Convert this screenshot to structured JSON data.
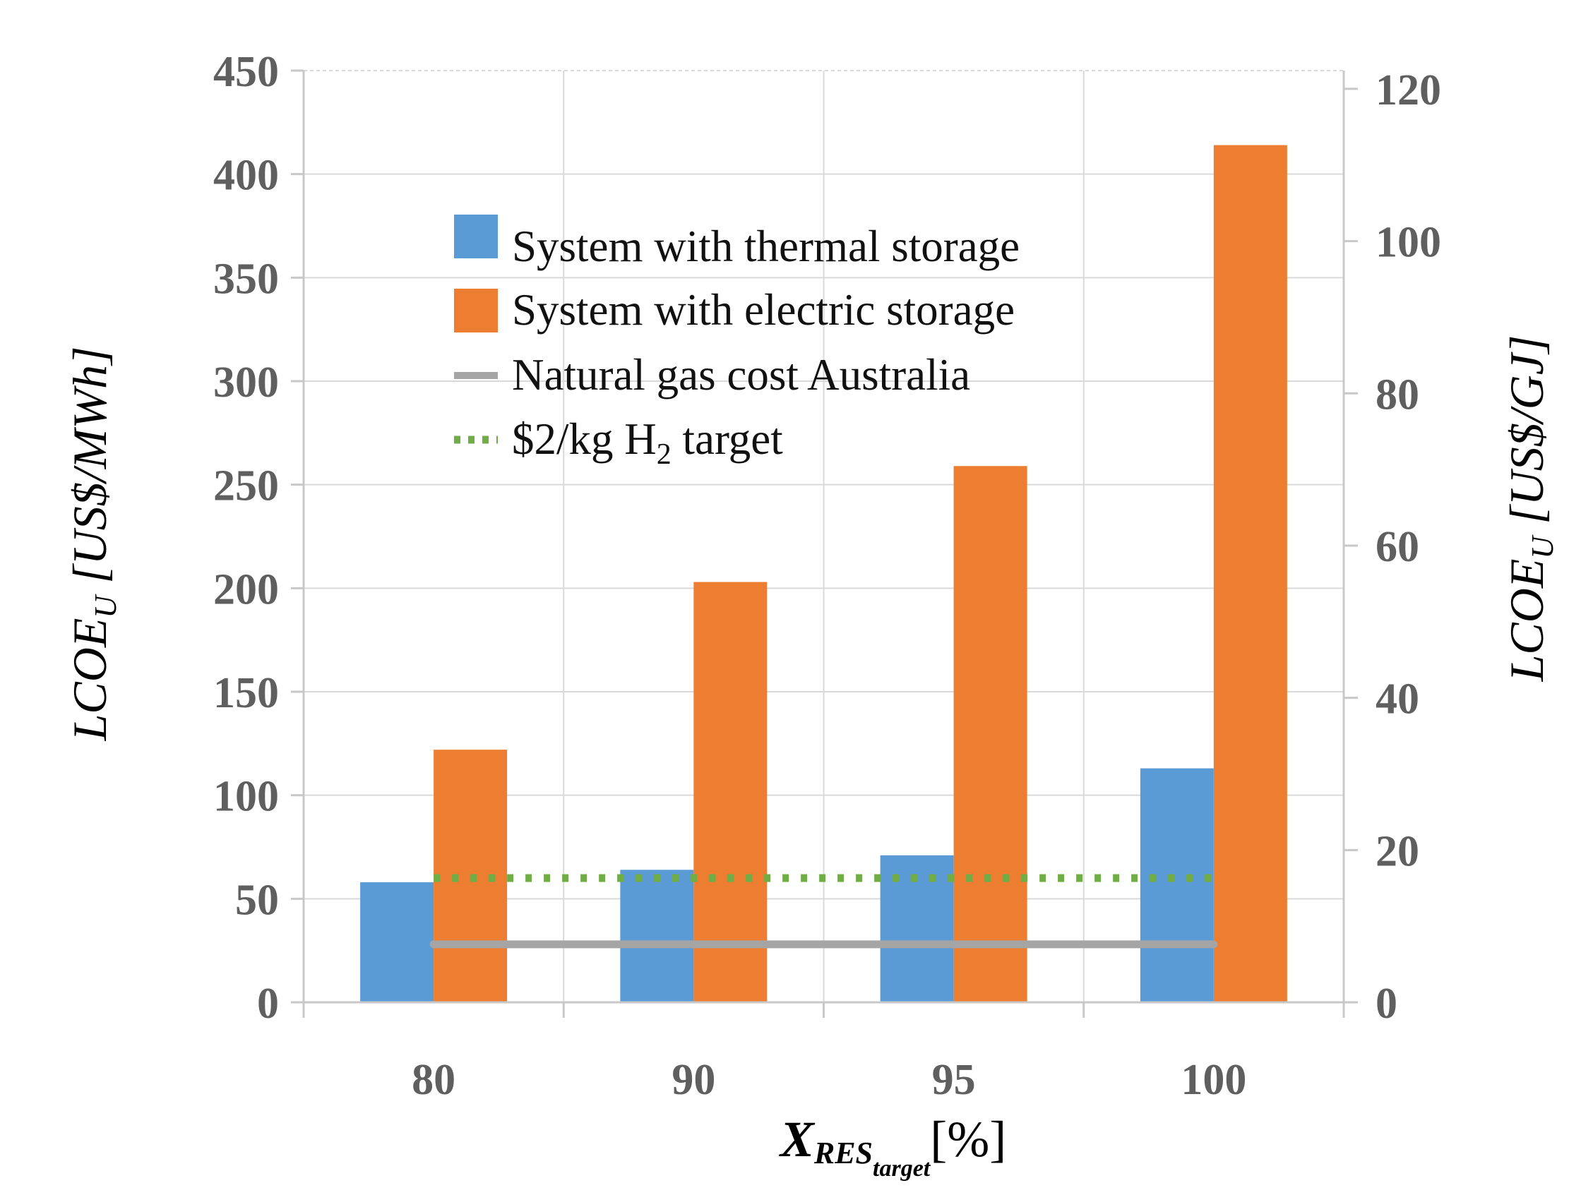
{
  "chart_data": {
    "type": "bar",
    "categories": [
      "80",
      "90",
      "95",
      "100"
    ],
    "series": [
      {
        "name": "System with thermal storage",
        "kind": "bar",
        "color": "#5b9bd5",
        "values": [
          58,
          64,
          71,
          113
        ]
      },
      {
        "name": "System with electric storage",
        "kind": "bar",
        "color": "#ed7d31",
        "values": [
          122,
          203,
          259,
          414
        ]
      },
      {
        "name": "Natural gas cost Australia",
        "kind": "line",
        "color": "#a5a5a5",
        "value": 28
      },
      {
        "name": "$2/kg H",
        "subscript": "2",
        "suffix": " target",
        "kind": "dotted-line",
        "color": "#70ad47",
        "value": 60
      }
    ],
    "ylim": [
      0,
      450
    ],
    "yticks": [
      0,
      50,
      100,
      150,
      200,
      250,
      300,
      350,
      400,
      450
    ],
    "ylabel": {
      "main": "LCOE",
      "sub": "U",
      "unit": " [US$/MWh]"
    },
    "y2lim": [
      0,
      122.4
    ],
    "y2ticks": [
      0,
      20,
      40,
      60,
      80,
      100,
      120
    ],
    "y2label": {
      "main": "LCOE",
      "sub": "U",
      "unit": " [US$/GJ]"
    },
    "xlabel": {
      "main": "X",
      "sub": "RES",
      "subsub": "target",
      "unit": "[%]"
    },
    "grid": true,
    "legend_position": "top-center"
  }
}
